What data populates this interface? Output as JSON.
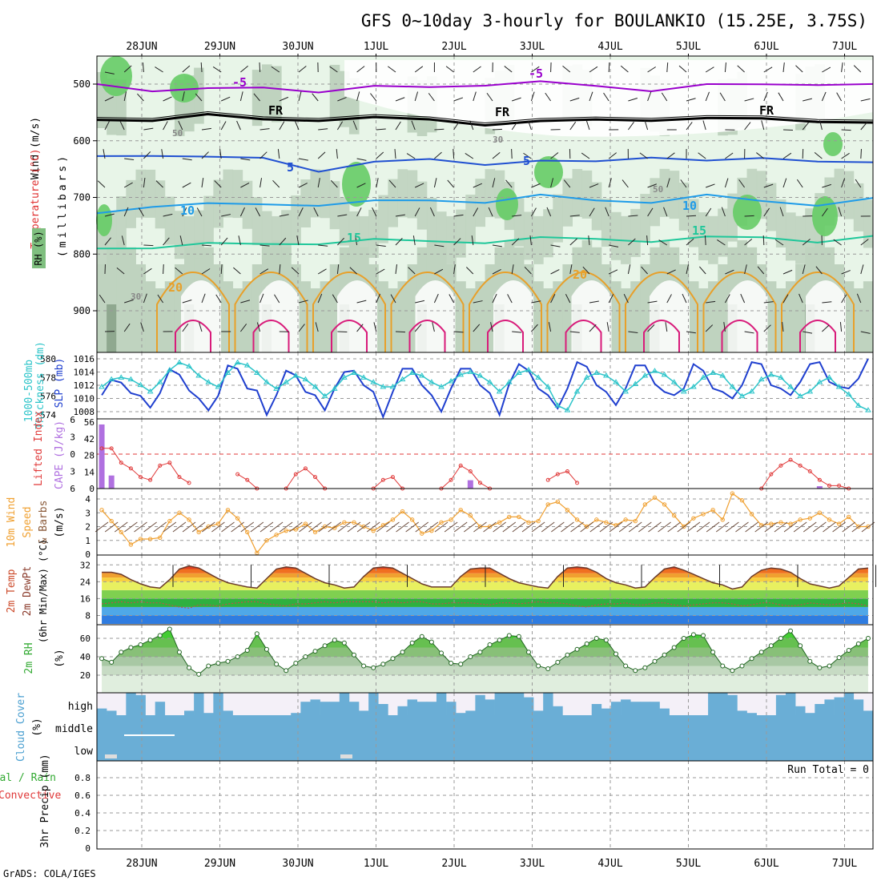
{
  "title": "GFS 0~10day 3-hourly for BOULANKIO (15.25E, 3.75S)",
  "footer": "GrADS: COLA/IGES",
  "dates": [
    "28JUN",
    "29JUN",
    "30JUN",
    "1JUL",
    "2JUL",
    "3JUL",
    "4JUL",
    "5JUL",
    "6JUL",
    "7JUL"
  ],
  "colors": {
    "rh_light": "#e8f5e8",
    "rh_mid": "#bfd3bf",
    "rh_dark": "#8fa88f",
    "rh_green": "#66cc66",
    "temp_minus5": "#9900cc",
    "temp_fr": "#000000",
    "temp_5": "#1f4fd1",
    "temp_10": "#1e9be8",
    "temp_15": "#1fc79a",
    "temp_20": "#e8a02a",
    "temp_25": "#d81b7a",
    "slp": "#1f3fcf",
    "thickness": "#2bc4c9",
    "lifted": "#e03a3a",
    "cape": "#b070e0",
    "wind": "#f0a030",
    "rh2m": "#44cc44",
    "cloud": "#6aaed6",
    "cloud_bg": "#f4f0f8"
  },
  "chart_data": [
    {
      "type": "area",
      "panel": "upper_air",
      "ylabel_left": [
        "Wind",
        "(m/s)"
      ],
      "ylabel_temp": "Temperature (°C)",
      "ylabel_rh": "RH (%)",
      "ylabel_p": "(millibars)",
      "yticks": [
        500,
        600,
        700,
        800,
        900
      ],
      "ylim": [
        1000,
        450
      ],
      "contour_labels": [
        {
          "text": "-5",
          "series": "temp_minus5"
        },
        {
          "text": "-5",
          "series": "temp_minus5"
        },
        {
          "text": "FR",
          "series": "temp_fr"
        },
        {
          "text": "FR",
          "series": "temp_fr"
        },
        {
          "text": "FR",
          "series": "temp_fr"
        },
        {
          "text": "5",
          "series": "temp_5"
        },
        {
          "text": "5",
          "series": "temp_5"
        },
        {
          "text": "10",
          "series": "temp_10"
        },
        {
          "text": "10",
          "series": "temp_10"
        },
        {
          "text": "15",
          "series": "temp_15"
        },
        {
          "text": "15",
          "series": "temp_15"
        },
        {
          "text": "20",
          "series": "temp_20"
        },
        {
          "text": "20",
          "series": "temp_20"
        },
        {
          "text": "50",
          "series": "rh"
        },
        {
          "text": "50",
          "series": "rh"
        },
        {
          "text": "30",
          "series": "rh"
        },
        {
          "text": "30",
          "series": "rh"
        }
      ],
      "series": [
        {
          "key": "temp_minus5",
          "p": [
            500,
            508,
            512,
            506,
            510,
            508,
            505,
            498,
            500,
            503,
            508,
            505,
            500,
            497,
            505
          ]
        },
        {
          "key": "temp_fr",
          "p": [
            563,
            560,
            558,
            562,
            560,
            563,
            562,
            568,
            570,
            562,
            560,
            565,
            560,
            562,
            573
          ]
        },
        {
          "key": "temp_5",
          "p": [
            627,
            622,
            633,
            630,
            650,
            642,
            632,
            638,
            640,
            636,
            625,
            640,
            630,
            632,
            643
          ]
        },
        {
          "key": "temp_10",
          "p": [
            728,
            712,
            715,
            712,
            710,
            710,
            705,
            705,
            700,
            705,
            705,
            700,
            706,
            710,
            706
          ]
        },
        {
          "key": "temp_15",
          "p": [
            790,
            785,
            785,
            782,
            778,
            778,
            777,
            776,
            775,
            773,
            774,
            774,
            770,
            775,
            773
          ]
        }
      ]
    },
    {
      "type": "line",
      "panel": "slp_thickness",
      "ylabel_left": [
        "1000-500mb",
        "Thickness (dm)"
      ],
      "ylabel_right": "SLP (mb)",
      "yticks_left": [
        574,
        576,
        578,
        580
      ],
      "yticks_right": [
        1008,
        1010,
        1012,
        1014,
        1016
      ],
      "ylim_right": [
        1007,
        1017
      ],
      "series": [
        {
          "name": "SLP (mb)",
          "axis": "right",
          "values": [
            1010.5,
            1012.8,
            1012.4,
            1010.8,
            1010.4,
            1008.6,
            1010.8,
            1014.4,
            1013.6,
            1011.2,
            1010.0,
            1008.2,
            1010.4,
            1015.0,
            1014.5,
            1011.5,
            1011.2,
            1007.5,
            1010.5,
            1014.2,
            1013.5,
            1011.0,
            1010.5,
            1008.2,
            1011.5,
            1014.0,
            1014.2,
            1012.0,
            1011.0,
            1007.2,
            1011.0,
            1014.5,
            1014.5,
            1012.0,
            1010.5,
            1008.0,
            1011.5,
            1014.5,
            1014.5,
            1012.0,
            1010.8,
            1007.5,
            1012.2,
            1015.2,
            1014.2,
            1011.5,
            1010.5,
            1008.5,
            1011.5,
            1015.5,
            1014.8,
            1012.0,
            1011.0,
            1009.0,
            1011.5,
            1015.0,
            1015.0,
            1012.2,
            1011.0,
            1010.5,
            1011.5,
            1015.2,
            1014.2,
            1011.5,
            1011.0,
            1010.0,
            1012.0,
            1015.5,
            1015.2,
            1012.0,
            1011.5,
            1010.5,
            1012.5,
            1015.2,
            1015.5,
            1012.5,
            1011.8,
            1011.5,
            1013.0,
            1016.0
          ]
        },
        {
          "name": "1000-500mb Thickness (dm)",
          "axis": "left",
          "values": [
            577.0,
            577.8,
            578.0,
            577.8,
            577.2,
            576.5,
            577.5,
            578.8,
            579.6,
            579.2,
            578.2,
            577.5,
            577.0,
            578.5,
            579.6,
            579.3,
            578.5,
            577.5,
            576.8,
            577.5,
            578.2,
            577.8,
            577.0,
            576.0,
            576.8,
            578.0,
            578.5,
            578.0,
            577.5,
            577.0,
            577.0,
            577.8,
            578.5,
            578.2,
            577.5,
            577.0,
            577.6,
            578.3,
            578.6,
            578.2,
            577.5,
            576.5,
            577.5,
            578.5,
            578.8,
            578.0,
            577.0,
            575.0,
            574.5,
            576.5,
            578.0,
            578.5,
            578.2,
            577.5,
            576.5,
            577.3,
            578.2,
            578.7,
            578.3,
            577.5,
            576.5,
            577.0,
            578.0,
            578.5,
            578.2,
            577.0,
            576.0,
            576.5,
            577.8,
            578.3,
            578.0,
            577.0,
            576.0,
            576.5,
            577.5,
            578.0,
            577.0,
            576.2,
            575.0,
            574.5
          ]
        }
      ]
    },
    {
      "type": "bar",
      "panel": "stability",
      "ylabel_left": "Lifted Index",
      "ylabel_right": "CAPE (J/kg)",
      "yticks_left": [
        -6,
        -3,
        0,
        3,
        6
      ],
      "yticks_right": [
        0,
        14,
        28,
        42,
        56
      ],
      "series": [
        {
          "name": "Lifted Index",
          "values": [
            -1.0,
            -1.0,
            1.5,
            2.5,
            4.0,
            4.5,
            2.0,
            1.5,
            4.0,
            5.0,
            null,
            null,
            null,
            null,
            3.5,
            4.5,
            6.0,
            null,
            null,
            6.0,
            3.5,
            2.5,
            4.0,
            6.0,
            null,
            null,
            null,
            null,
            6.0,
            4.5,
            4.0,
            6.0,
            null,
            null,
            null,
            6.0,
            4.5,
            2.0,
            3.0,
            5.0,
            6.0,
            null,
            null,
            null,
            null,
            null,
            4.5,
            3.5,
            3.0,
            5.0,
            null,
            null,
            null,
            null,
            null,
            null,
            null,
            null,
            null,
            null,
            null,
            null,
            null,
            null,
            null,
            null,
            null,
            null,
            6.0,
            3.5,
            2.0,
            1.0,
            2.0,
            3.0,
            4.5,
            5.5,
            5.5,
            6.0,
            null,
            null
          ]
        },
        {
          "name": "CAPE (J/kg)",
          "values": [
            54,
            11,
            0,
            0,
            0,
            0,
            0,
            0,
            0,
            0,
            0,
            0,
            0,
            0,
            0,
            0,
            0,
            0,
            0,
            0,
            0,
            0,
            0,
            0,
            0,
            0,
            0,
            0,
            0,
            0,
            0,
            0,
            0,
            0,
            0,
            0,
            0,
            0,
            7,
            0,
            0,
            0,
            0,
            0,
            0,
            0,
            0,
            0,
            0,
            0,
            0,
            0,
            0,
            0,
            0,
            0,
            0,
            0,
            0,
            0,
            0,
            0,
            0,
            0,
            0,
            0,
            0,
            0,
            0,
            0,
            0,
            0,
            0,
            0,
            2,
            0,
            0,
            0,
            0,
            0
          ]
        }
      ]
    },
    {
      "type": "line",
      "panel": "wind10m",
      "ylabel_left": [
        "10m Wind",
        "Speed",
        "& Barbs",
        "(m/s)"
      ],
      "yticks": [
        0,
        1,
        2,
        3,
        4
      ],
      "ylim": [
        0,
        4.7
      ],
      "series": [
        {
          "name": "10m Wind Speed",
          "values": [
            3.2,
            2.4,
            1.6,
            0.7,
            1.1,
            1.1,
            1.2,
            2.4,
            3.0,
            2.5,
            1.6,
            2.0,
            2.2,
            3.2,
            2.6,
            1.6,
            0.1,
            1.0,
            1.4,
            1.7,
            1.8,
            2.2,
            1.6,
            2.0,
            1.9,
            2.3,
            2.3,
            2.0,
            1.7,
            2.1,
            2.5,
            3.1,
            2.5,
            1.5,
            1.7,
            2.3,
            2.5,
            3.2,
            2.8,
            2.0,
            2.0,
            2.3,
            2.7,
            2.7,
            2.3,
            2.4,
            3.6,
            3.8,
            3.2,
            2.5,
            2.0,
            2.5,
            2.3,
            2.1,
            2.5,
            2.4,
            3.6,
            4.1,
            3.6,
            2.8,
            2.0,
            2.6,
            2.9,
            3.2,
            2.5,
            4.4,
            3.9,
            2.9,
            2.1,
            2.2,
            2.3,
            2.2,
            2.5,
            2.6,
            3.0,
            2.5,
            2.2,
            2.7,
            2.0,
            2.0
          ]
        }
      ]
    },
    {
      "type": "area",
      "panel": "temp2m",
      "ylabel_left": [
        "2m Temp",
        "2m DewPt",
        "(6hr Min/Max) (°C)"
      ],
      "yticks": [
        8,
        16,
        24,
        32
      ],
      "ylim": [
        4,
        34
      ],
      "series": [
        {
          "name": "2m Temp",
          "values": [
            28.5,
            28.5,
            27.5,
            25.0,
            23.0,
            21.5,
            21.0,
            25.0,
            30.0,
            31.5,
            30.5,
            28.0,
            25.5,
            23.5,
            22.5,
            21.5,
            21.0,
            25.5,
            30.0,
            31.0,
            30.5,
            28.0,
            25.5,
            23.5,
            22.5,
            21.0,
            21.5,
            26.5,
            30.5,
            31.0,
            30.5,
            28.0,
            25.5,
            23.0,
            21.5,
            21.5,
            21.5,
            26.5,
            30.0,
            30.5,
            30.5,
            28.0,
            25.5,
            23.5,
            22.5,
            21.5,
            21.0,
            26.5,
            30.5,
            31.0,
            30.5,
            28.5,
            25.5,
            23.5,
            22.5,
            21.0,
            21.5,
            26.0,
            30.0,
            31.0,
            29.5,
            27.5,
            25.5,
            23.5,
            22.5,
            20.5,
            21.5,
            26.5,
            29.5,
            30.5,
            30.0,
            28.5,
            25.5,
            23.0,
            22.0,
            21.0,
            22.0,
            26.0,
            30.0,
            30.5
          ]
        },
        {
          "name": "2m DewPt",
          "values": [
            13.5,
            14.0,
            14.5,
            14.0,
            14.5,
            14.0,
            14.0,
            13.0,
            12.0,
            11.5,
            13.0,
            13.0,
            12.5,
            13.5,
            14.0,
            14.5,
            14.5,
            13.5,
            13.0,
            12.5,
            13.5,
            13.5,
            14.0,
            14.5,
            14.0,
            14.5,
            14.5,
            14.5,
            14.5,
            14.0,
            14.5,
            14.0,
            14.5,
            14.5,
            13.5,
            13.5,
            14.0,
            14.0,
            14.0,
            13.5,
            13.0,
            14.0,
            14.0,
            13.5,
            14.0,
            14.5,
            14.0,
            14.0,
            13.5,
            12.5,
            12.0,
            13.0,
            13.5,
            13.5,
            14.0,
            13.0,
            13.0,
            14.0,
            14.0,
            13.0,
            12.5,
            13.0,
            13.5,
            14.0,
            14.0,
            13.5,
            12.5,
            13.0,
            14.0,
            14.0,
            13.0,
            12.5,
            13.0,
            14.0,
            13.5,
            13.0,
            13.5,
            14.0,
            13.5,
            12.5
          ]
        }
      ]
    },
    {
      "type": "area",
      "panel": "rh2m",
      "ylabel_left": "2m RH",
      "yunit": "(%)",
      "yticks": [
        20,
        40,
        60
      ],
      "ylim": [
        5,
        75
      ],
      "series": [
        {
          "name": "2m RH",
          "values": [
            38,
            34,
            45,
            50,
            53,
            58,
            63,
            70,
            45,
            28,
            21,
            30,
            33,
            35,
            40,
            47,
            65,
            48,
            32,
            25,
            33,
            40,
            46,
            52,
            58,
            55,
            42,
            30,
            28,
            32,
            38,
            45,
            55,
            62,
            56,
            44,
            33,
            32,
            40,
            45,
            53,
            58,
            63,
            62,
            45,
            30,
            27,
            34,
            42,
            48,
            54,
            60,
            58,
            43,
            30,
            25,
            28,
            35,
            42,
            50,
            60,
            64,
            63,
            45,
            30,
            25,
            30,
            38,
            45,
            52,
            60,
            68,
            52,
            35,
            28,
            30,
            39,
            47,
            54,
            60
          ]
        }
      ]
    },
    {
      "type": "bar",
      "panel": "cloud",
      "ylabel_left": [
        "Cloud Cover",
        "(%)"
      ],
      "levels": [
        "high",
        "middle",
        "low"
      ]
    },
    {
      "type": "bar",
      "panel": "precip",
      "ylabel_left": [
        "3hr Precip (mm)"
      ],
      "ylabel_left2": "Total / Rain",
      "ylabel_left3": "Convective",
      "yticks": [
        0,
        0.2,
        0.4,
        0.6,
        0.8
      ],
      "ylim": [
        0,
        1
      ],
      "run_total": "Run Total = 0",
      "values": []
    }
  ]
}
